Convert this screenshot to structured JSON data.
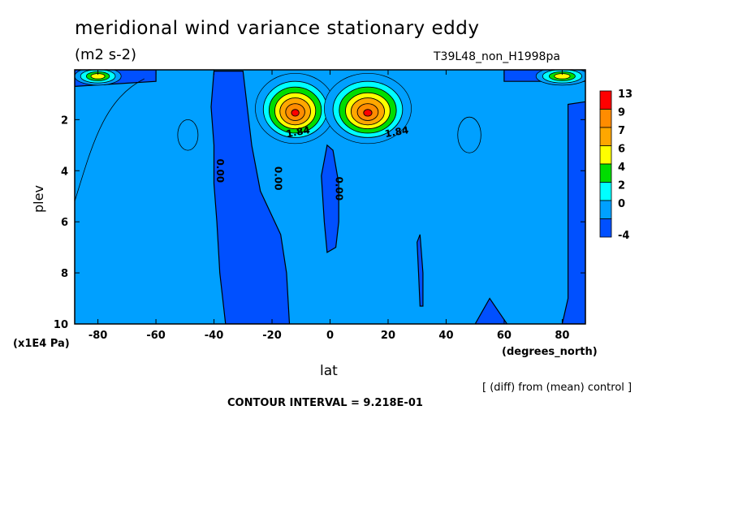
{
  "page": {
    "title": "meridional wind variance  stationary eddy",
    "units": "(m2 s-2)",
    "run_label": "T39L48_non_H1998pa",
    "y_unit": "(x1E4 Pa)",
    "x_unit": "(degrees_north)",
    "diff_note": "[ (diff) from (mean) control ]",
    "contour_note": "CONTOUR INTERVAL = 9.218E-01"
  },
  "chart_data": {
    "type": "contour",
    "xlabel": "lat",
    "ylabel": "plev",
    "xlim": [
      -88,
      88
    ],
    "ylim": [
      10,
      0.05
    ],
    "x_ticks": [
      -80,
      -60,
      -40,
      -20,
      0,
      20,
      40,
      60,
      80
    ],
    "y_ticks": [
      2,
      4,
      6,
      8,
      10
    ],
    "legend": {
      "levels": [
        "13",
        "9",
        "7",
        "6",
        "4",
        "2",
        "0",
        "-4"
      ],
      "colors": [
        "#ff0000",
        "#ff8c00",
        "#ffa700",
        "#ffff00",
        "#00dd00",
        "#00ffff",
        "#00a0ff",
        "#0050ff"
      ]
    },
    "contour_labels": [
      {
        "text": "0.00",
        "x": -38,
        "y": 4.0
      },
      {
        "text": "0.00",
        "x": -18,
        "y": 4.3
      },
      {
        "text": "0.00",
        "x": 3,
        "y": 4.7
      },
      {
        "text": "1.84",
        "x": -11,
        "y": 2.5
      },
      {
        "text": "1.84",
        "x": 23,
        "y": 2.5
      }
    ],
    "regions": {
      "background": {
        "fill_index": 6
      },
      "negative": [
        {
          "fill_index": 7,
          "points": [
            [
              -40,
              0.1
            ],
            [
              -30,
              0.1
            ],
            [
              -27,
              3
            ],
            [
              -24,
              4.8
            ],
            [
              -17,
              6.5
            ],
            [
              -15,
              8
            ],
            [
              -14,
              10
            ],
            [
              -36,
              10
            ],
            [
              -38,
              8
            ],
            [
              -39,
              6
            ],
            [
              -40,
              4.5
            ],
            [
              -40,
              3
            ],
            [
              -41,
              1.5
            ]
          ]
        },
        {
          "fill_index": 7,
          "points": [
            [
              -1,
              3
            ],
            [
              1,
              3.2
            ],
            [
              3,
              4.5
            ],
            [
              3,
              6
            ],
            [
              2,
              7
            ],
            [
              -1,
              7.2
            ],
            [
              -2,
              6
            ],
            [
              -3,
              4.2
            ]
          ]
        },
        {
          "fill_index": 7,
          "points": [
            [
              30,
              6.8
            ],
            [
              31,
              6.5
            ],
            [
              32,
              8
            ],
            [
              32,
              9.3
            ],
            [
              31,
              9.3
            ],
            [
              30.5,
              8
            ]
          ]
        },
        {
          "fill_index": 7,
          "points": [
            [
              82,
              1.4
            ],
            [
              88,
              1.3
            ],
            [
              88,
              10
            ],
            [
              80,
              10
            ],
            [
              82,
              9
            ],
            [
              82,
              5
            ]
          ]
        },
        {
          "fill_index": 7,
          "points": [
            [
              50,
              10
            ],
            [
              55,
              9
            ],
            [
              58,
              9.5
            ],
            [
              61,
              10
            ]
          ]
        },
        {
          "fill_index": 7,
          "points": [
            [
              -88,
              0.05
            ],
            [
              -60,
              0.05
            ],
            [
              -60,
              0.5
            ],
            [
              -88,
              0.7
            ]
          ]
        },
        {
          "fill_index": 7,
          "points": [
            [
              60,
              0.05
            ],
            [
              88,
              0.05
            ],
            [
              88,
              0.5
            ],
            [
              60,
              0.5
            ]
          ]
        }
      ],
      "positive_center": [
        {
          "cx": -12,
          "cy": 1.6,
          "rx": 11,
          "ry": 1.1
        },
        {
          "cx": 13,
          "cy": 1.6,
          "rx": 12,
          "ry": 1.1
        }
      ],
      "top_edge": [
        {
          "cx": -80,
          "cy": 0.3,
          "rx": 8,
          "ry": 0.35
        },
        {
          "cx": 80,
          "cy": 0.3,
          "rx": 9,
          "ry": 0.35
        }
      ]
    }
  }
}
